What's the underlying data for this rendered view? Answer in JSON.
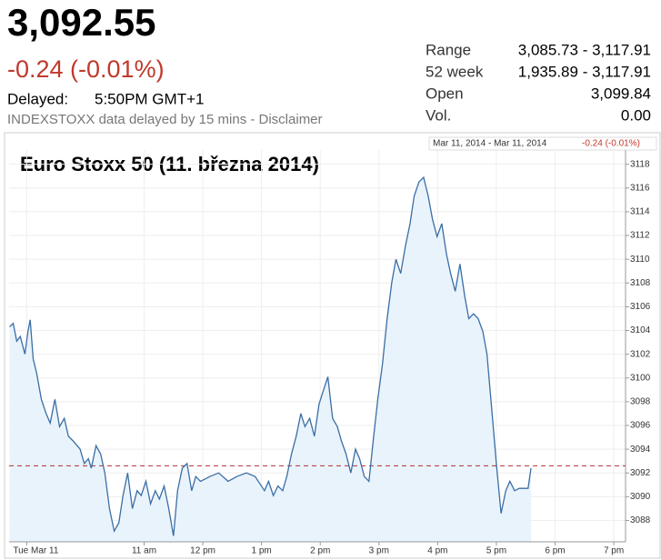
{
  "header": {
    "price": "3,092.55",
    "change": "-0.24 (-0.01%)",
    "delayed_label": "Delayed:",
    "delayed_time": "5:50PM GMT+1",
    "note": "INDEXSTOXX data delayed by 15 mins - Disclaimer"
  },
  "stats": [
    [
      "Range",
      "3,085.73 - 3,117.91"
    ],
    [
      "52 week",
      "1,935.89 - 3,117.91"
    ],
    [
      "Open",
      "3,099.84"
    ],
    [
      "Vol.",
      "0.00"
    ]
  ],
  "chart_data": {
    "type": "line",
    "title": "Euro Stoxx 50 (11. března 2014)",
    "legend": {
      "range": "Mar 11, 2014 - Mar 11, 2014",
      "change": "-0.24 (-0.01%)"
    },
    "x": [
      8.71,
      8.77,
      8.83,
      8.89,
      8.97,
      9.02,
      9.06,
      9.11,
      9.17,
      9.25,
      9.33,
      9.4,
      9.48,
      9.56,
      9.64,
      9.71,
      9.79,
      9.91,
      9.98,
      10.05,
      10.1,
      10.18,
      10.26,
      10.33,
      10.41,
      10.49,
      10.57,
      10.64,
      10.72,
      10.8,
      10.88,
      10.95,
      11.03,
      11.11,
      11.19,
      11.26,
      11.34,
      11.42,
      11.5,
      11.57,
      11.65,
      11.73,
      11.81,
      11.88,
      11.96,
      12.12,
      12.27,
      12.43,
      12.58,
      12.74,
      12.89,
      13.05,
      13.12,
      13.2,
      13.28,
      13.36,
      13.43,
      13.51,
      13.59,
      13.67,
      13.74,
      13.82,
      13.9,
      13.98,
      14.05,
      14.13,
      14.21,
      14.29,
      14.36,
      14.44,
      14.52,
      14.6,
      14.67,
      14.75,
      14.83,
      14.91,
      14.98,
      15.06,
      15.14,
      15.22,
      15.29,
      15.37,
      15.45,
      15.53,
      15.6,
      15.68,
      15.76,
      15.84,
      15.91,
      15.99,
      16.07,
      16.15,
      16.22,
      16.3,
      16.38,
      16.46,
      16.53,
      16.61,
      16.69,
      16.77,
      16.84,
      16.92,
      17.0,
      17.08,
      17.16,
      17.23,
      17.31,
      17.39,
      17.47,
      17.54,
      17.59
    ],
    "series": [
      {
        "color": "#3a6ea5",
        "values": [
          3104.3,
          3104.6,
          3103.1,
          3103.5,
          3102.0,
          3103.9,
          3104.9,
          3101.6,
          3100.4,
          3098.2,
          3097.0,
          3096.2,
          3098.2,
          3095.9,
          3096.6,
          3095.1,
          3094.7,
          3094.0,
          3092.8,
          3093.2,
          3092.4,
          3094.3,
          3093.6,
          3092.0,
          3089.0,
          3087.1,
          3087.8,
          3090.1,
          3092.0,
          3089.0,
          3090.5,
          3090.1,
          3091.3,
          3089.4,
          3090.5,
          3089.8,
          3090.9,
          3089.0,
          3086.7,
          3090.5,
          3092.4,
          3092.8,
          3090.5,
          3091.7,
          3091.3,
          3091.7,
          3092.0,
          3091.3,
          3091.7,
          3092.0,
          3091.7,
          3090.5,
          3091.3,
          3090.1,
          3090.9,
          3090.5,
          3091.7,
          3093.6,
          3095.1,
          3097.0,
          3095.9,
          3096.6,
          3095.1,
          3097.8,
          3098.9,
          3100.1,
          3096.6,
          3095.9,
          3094.7,
          3093.6,
          3092.0,
          3094.0,
          3093.2,
          3091.7,
          3091.3,
          3095.1,
          3098.2,
          3101.2,
          3105.0,
          3108.1,
          3110.0,
          3108.8,
          3111.1,
          3113.0,
          3115.3,
          3116.5,
          3116.9,
          3115.3,
          3113.4,
          3111.9,
          3113.0,
          3110.4,
          3108.8,
          3107.3,
          3109.6,
          3106.9,
          3105.0,
          3105.4,
          3105.0,
          3103.9,
          3102.0,
          3097.4,
          3092.8,
          3088.6,
          3090.5,
          3091.3,
          3090.5,
          3090.7,
          3090.7,
          3090.7,
          3092.4
        ]
      }
    ],
    "area_color": "#e9f3fc",
    "reference_line": 3092.6,
    "reference_color": "#b03030",
    "xlim": [
      8.7,
      19.2
    ],
    "xticks": [
      {
        "value": 9,
        "label": "Tue Mar 11"
      },
      {
        "value": 11,
        "label": "11 am"
      },
      {
        "value": 12,
        "label": "12 pm"
      },
      {
        "value": 13,
        "label": "1 pm"
      },
      {
        "value": 14,
        "label": "2 pm"
      },
      {
        "value": 15,
        "label": "3 pm"
      },
      {
        "value": 16,
        "label": "4 pm"
      },
      {
        "value": 17,
        "label": "5 pm"
      },
      {
        "value": 18,
        "label": "6 pm"
      },
      {
        "value": 19,
        "label": "7 pm"
      }
    ],
    "ylim": [
      3086.2,
      3119.2
    ],
    "yticks": [
      3088,
      3090,
      3092,
      3094,
      3096,
      3098,
      3100,
      3102,
      3104,
      3106,
      3108,
      3110,
      3112,
      3114,
      3116,
      3118
    ],
    "grid": true
  }
}
